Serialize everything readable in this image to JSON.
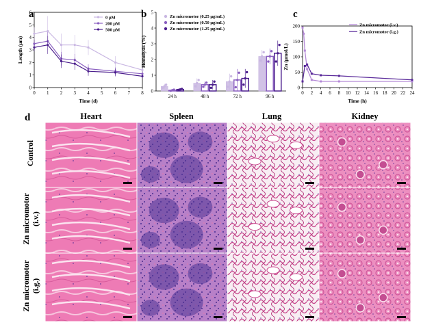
{
  "colors": {
    "c1": "#c9b7e2",
    "c2": "#8a5fc0",
    "c3": "#4a1d8c",
    "he_pink": "#e86aa8",
    "he_purple": "#6a4aa8"
  },
  "panel_a": {
    "label": "a",
    "chart_data": {
      "type": "line",
      "title": "",
      "xlabel": "Time (d)",
      "ylabel": "Length (μm)",
      "xlim": [
        0,
        8
      ],
      "ylim": [
        0,
        6
      ],
      "x": [
        0,
        1,
        2,
        3,
        4,
        6,
        8
      ],
      "xticks": [
        "0",
        "1",
        "2",
        "3",
        "4",
        "5",
        "6",
        "7",
        "8"
      ],
      "yticks": [
        "0",
        "1",
        "2",
        "3",
        "4",
        "5",
        "6"
      ],
      "series": [
        {
          "name": "0 μM",
          "color": "#c9b7e2",
          "values": [
            4.3,
            4.5,
            3.4,
            3.4,
            3.2,
            2.0,
            1.4
          ]
        },
        {
          "name": "200 μM",
          "color": "#8a5fc0",
          "values": [
            3.5,
            3.7,
            2.3,
            2.2,
            1.5,
            1.3,
            1.1
          ]
        },
        {
          "name": "500 μM",
          "color": "#4a1d8c",
          "values": [
            3.2,
            3.4,
            2.1,
            1.9,
            1.3,
            1.2,
            0.9
          ]
        }
      ],
      "errors": [
        0.5,
        1.2,
        0.9,
        0.8,
        0.6,
        0.5,
        0.3
      ]
    }
  },
  "panel_b": {
    "label": "b",
    "chart_data": {
      "type": "bar",
      "title": "",
      "xlabel": "",
      "ylabel": "Hemolysis (%)",
      "ylim": [
        0,
        5
      ],
      "categories": [
        "24 h",
        "48 h",
        "72 h",
        "96 h"
      ],
      "yticks": [
        "0",
        "1",
        "2",
        "3",
        "4",
        "5"
      ],
      "series": [
        {
          "name": "Zn micromotor (0.25 μg/mL)",
          "color": "#c9b7e2",
          "values": [
            0.3,
            0.5,
            0.6,
            2.2
          ],
          "err": [
            0.15,
            0.3,
            0.5,
            0.4
          ]
        },
        {
          "name": "Zn micromotor (0.50 μg/mL)",
          "color": "#8a5fc0",
          "values": [
            0.05,
            0.4,
            0.7,
            2.2
          ],
          "err": [
            0.05,
            0.2,
            0.7,
            0.5
          ]
        },
        {
          "name": "Zn micromotor (1.25 μg/mL)",
          "color": "#4a1d8c",
          "values": [
            0.1,
            0.4,
            0.8,
            2.4
          ],
          "err": [
            0.05,
            0.3,
            0.6,
            0.8
          ]
        }
      ]
    }
  },
  "panel_c": {
    "label": "c",
    "chart_data": {
      "type": "line",
      "title": "",
      "xlabel": "Time (h)",
      "ylabel": "Zn (μmol/L)",
      "xlim": [
        0,
        24
      ],
      "ylim": [
        0,
        200
      ],
      "xticks": [
        "0",
        "2",
        "4",
        "6",
        "8",
        "10",
        "12",
        "14",
        "16",
        "18",
        "20",
        "22",
        "24"
      ],
      "yticks": [
        "0",
        "50",
        "100",
        "150",
        "200"
      ],
      "series": [
        {
          "name": "Zn micromotor (i.v.)",
          "color": "#b58ad8",
          "x": [
            0,
            0.25,
            0.5,
            1,
            2,
            4,
            8,
            24
          ],
          "values": [
            195,
            175,
            120,
            60,
            25,
            20,
            20,
            20
          ]
        },
        {
          "name": "Zn micromotor (i.g.)",
          "color": "#5a2a9a",
          "x": [
            0,
            0.5,
            1,
            2,
            4,
            8,
            24
          ],
          "values": [
            20,
            70,
            75,
            45,
            40,
            38,
            25
          ]
        }
      ]
    }
  },
  "panel_d": {
    "label": "d",
    "columns": [
      "Heart",
      "Spleen",
      "Lung",
      "Kidney"
    ],
    "rows": [
      "Control",
      "Zn micromotor (i.v.)",
      "Zn micromotor (i.g.)"
    ],
    "row_lines": [
      [
        "Control"
      ],
      [
        "Zn micromotor",
        "(i.v.)"
      ],
      [
        "Zn micromotor",
        "(i.g.)"
      ]
    ]
  }
}
